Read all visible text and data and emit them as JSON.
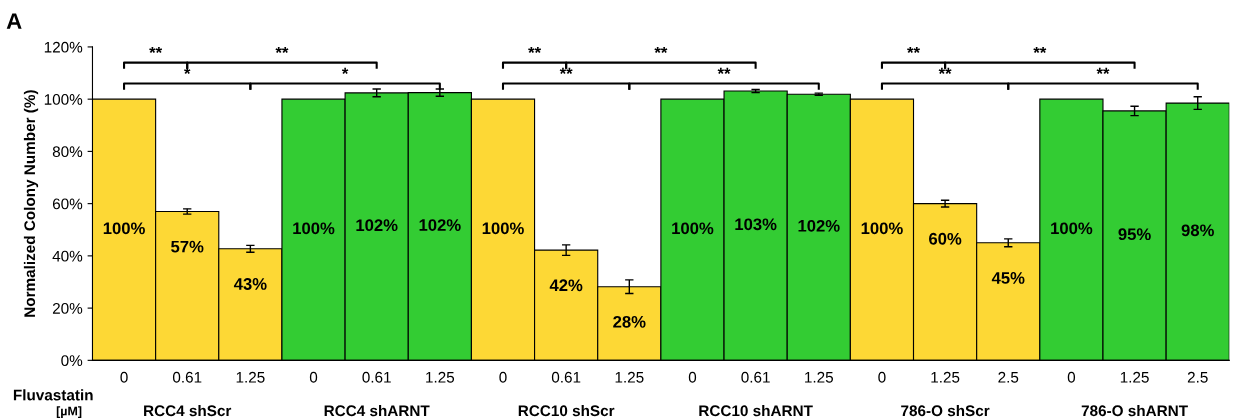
{
  "chart_data": {
    "type": "bar",
    "ylabel": "Normalized Colony Number (%)",
    "xlabel": "Fluvastatin\n[µM]",
    "categories": [
      "0",
      "0.61",
      "1.25",
      "0",
      "0.61",
      "1.25",
      "0",
      "0.61",
      "1.25",
      "0",
      "0.61",
      "1.25",
      "0",
      "1.25",
      "2.5",
      "0",
      "1.25",
      "2.5"
    ],
    "values": [
      100,
      57,
      42.7,
      100,
      102.4,
      102.5,
      100,
      42.2,
      28.2,
      100,
      103.1,
      101.9,
      100,
      60,
      45,
      100,
      95.5,
      98.5
    ],
    "errors": [
      null,
      1,
      1.3,
      null,
      1.5,
      1.4,
      null,
      2,
      2.6,
      null,
      0.6,
      0.4,
      null,
      1.3,
      1.5,
      null,
      1.8,
      2.4
    ],
    "colors": [
      "#fdd835",
      "#fdd835",
      "#fdd835",
      "#33cc33",
      "#33cc33",
      "#33cc33",
      "#fdd835",
      "#fdd835",
      "#fdd835",
      "#33cc33",
      "#33cc33",
      "#33cc33",
      "#fdd835",
      "#fdd835",
      "#fdd835",
      "#33cc33",
      "#33cc33",
      "#33cc33"
    ],
    "value_labels": [
      "100%",
      "57%",
      "43%",
      "100%",
      "102%",
      "102%",
      "100%",
      "42%",
      "28%",
      "100%",
      "103%",
      "102%",
      "100%",
      "60%",
      "45%",
      "100%",
      "95%",
      "98%"
    ],
    "ylim": [
      0,
      120
    ],
    "yticks": [
      {
        "value": 0,
        "label": "0%"
      },
      {
        "value": 20,
        "label": "20%"
      },
      {
        "value": 40,
        "label": "40%"
      },
      {
        "value": 60,
        "label": "60%"
      },
      {
        "value": 80,
        "label": "80%"
      },
      {
        "value": 100,
        "label": "100%"
      },
      {
        "value": 120,
        "label": "120%"
      }
    ],
    "grid": false,
    "annotations": [
      "A",
      "RCC4 shScr",
      "RCC4 shARNT",
      "RCC10 shScr",
      "RCC10 shARNT",
      "786-O shScr",
      "786-O shARNT",
      "**",
      "**",
      "*",
      "*",
      "**",
      "**",
      "**",
      "**",
      "**",
      "**",
      "**",
      "**"
    ]
  }
}
